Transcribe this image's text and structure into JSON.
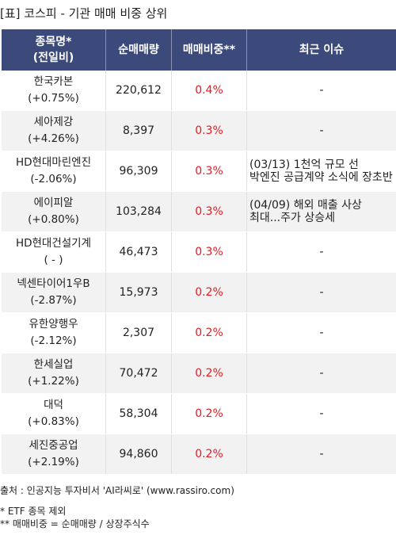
{
  "title": "[표] 코스피 - 기관 매매 비중 상위",
  "header": {
    "col1_line1": "종목명*",
    "col1_line2": "(전일비)",
    "col2": "순매매량",
    "col3": "매매비중**",
    "col4": "최근 이슈"
  },
  "rows": [
    {
      "name": "한국카본",
      "change": "(+0.75%)",
      "volume": "220,612",
      "ratio": "0.4%",
      "issue1": "-",
      "issue2": ""
    },
    {
      "name": "세아제강",
      "change": "(+4.26%)",
      "volume": "8,397",
      "ratio": "0.3%",
      "issue1": "-",
      "issue2": ""
    },
    {
      "name": "HD현대마린엔진",
      "change": "(-2.06%)",
      "volume": "96,309",
      "ratio": "0.3%",
      "issue1": "(03/13) 1천억 규모 선",
      "issue2": "박엔진 공급계약 소식에 장초반"
    },
    {
      "name": "에이피알",
      "change": "(+0.80%)",
      "volume": "103,284",
      "ratio": "0.3%",
      "issue1": "(04/09) 해외 매출 사상",
      "issue2": "최대...주가 상승세"
    },
    {
      "name": "HD현대건설기계",
      "change": "( - )",
      "volume": "46,473",
      "ratio": "0.3%",
      "issue1": "-",
      "issue2": ""
    },
    {
      "name": "넥센타이어1우B",
      "change": "(-2.87%)",
      "volume": "15,973",
      "ratio": "0.2%",
      "issue1": "-",
      "issue2": ""
    },
    {
      "name": "유한양행우",
      "change": "(-2.12%)",
      "volume": "2,307",
      "ratio": "0.2%",
      "issue1": "-",
      "issue2": ""
    },
    {
      "name": "한세실업",
      "change": "(+1.22%)",
      "volume": "70,472",
      "ratio": "0.2%",
      "issue1": "-",
      "issue2": ""
    },
    {
      "name": "대덕",
      "change": "(+0.83%)",
      "volume": "58,304",
      "ratio": "0.2%",
      "issue1": "-",
      "issue2": ""
    },
    {
      "name": "세진중공업",
      "change": "(+2.19%)",
      "volume": "94,860",
      "ratio": "0.2%",
      "issue1": "-",
      "issue2": ""
    }
  ],
  "footer": {
    "source": "출처 : 인공지능 투자비서 'AI라씨로' (www.rassiro.com)",
    "note1": "* ETF 종목 제외",
    "note2": "** 매매비중 = 순매매량 / 상장주식수"
  }
}
